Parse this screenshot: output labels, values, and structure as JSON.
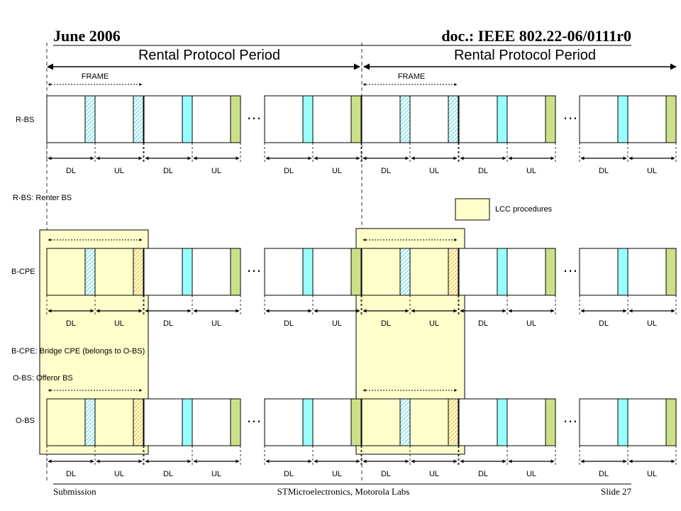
{
  "header": {
    "date": "June 2006",
    "doc": "doc.: IEEE 802.22-06/0111r0"
  },
  "footer": {
    "left": "Submission",
    "center": "STMicroelectronics,  Motorola Labs",
    "right": "Slide 27"
  },
  "periods": {
    "left_label": "Rental Protocol Period",
    "right_label": "Rental Protocol Period"
  },
  "frame_label": "FRAME",
  "rows": [
    {
      "id": "rbs",
      "label": "R-BS"
    },
    {
      "id": "bcpe",
      "label": "B-CPE"
    },
    {
      "id": "obs",
      "label": "O-BS"
    }
  ],
  "subframe_labels": {
    "dl": "DL",
    "ul": "UL"
  },
  "ellipsis": "…",
  "notes": {
    "rbs": "R-BS: Renter BS",
    "bcpe": "B-CPE: Bridge CPE (belongs to O-BS)",
    "obs": "O-BS: Offeror BS"
  },
  "legend": {
    "label": "LCC procedures",
    "color": "#ffffcc"
  },
  "colors": {
    "cyan": "#99ffff",
    "green": "#cce08a",
    "lcc_fill": "#ffffcc",
    "stroke": "#000000"
  }
}
